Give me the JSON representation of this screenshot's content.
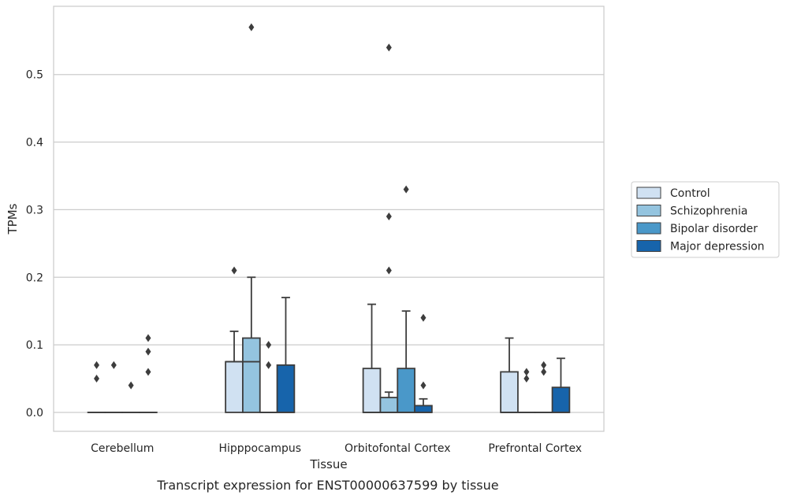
{
  "chart_data": {
    "type": "boxplot",
    "xlabel": "Tissue",
    "ylabel": "TPMs",
    "caption": "Transcript expression for ENST00000637599 by tissue",
    "ylim": [
      -0.028,
      0.601
    ],
    "yticks": [
      0.0,
      0.1,
      0.2,
      0.3,
      0.4,
      0.5
    ],
    "ytick_labels": [
      "0.0",
      "0.1",
      "0.2",
      "0.3",
      "0.4",
      "0.5"
    ],
    "grid": "horizontal",
    "legend_position": "right",
    "categories": [
      "Cerebellum",
      "Hipppocampus",
      "Orbitofontal Cortex",
      "Prefrontal Cortex"
    ],
    "series": [
      {
        "name": "Control",
        "color": "#d0e1f2",
        "boxes": [
          {
            "q1": 0.0,
            "median": 0.0,
            "q3": 0.0,
            "whislo": 0.0,
            "whishi": 0.0,
            "fliers": [
              0.05,
              0.07
            ]
          },
          {
            "q1": 0.0,
            "median": 0.075,
            "q3": 0.075,
            "whislo": 0.0,
            "whishi": 0.12,
            "fliers": [
              0.21
            ]
          },
          {
            "q1": 0.0,
            "median": 0.0,
            "q3": 0.065,
            "whislo": 0.0,
            "whishi": 0.16,
            "fliers": []
          },
          {
            "q1": 0.0,
            "median": 0.0,
            "q3": 0.06,
            "whislo": 0.0,
            "whishi": 0.11,
            "fliers": []
          }
        ]
      },
      {
        "name": "Schizophrenia",
        "color": "#94c4df",
        "boxes": [
          {
            "q1": 0.0,
            "median": 0.0,
            "q3": 0.0,
            "whislo": 0.0,
            "whishi": 0.0,
            "fliers": [
              0.07
            ]
          },
          {
            "q1": 0.0,
            "median": 0.075,
            "q3": 0.11,
            "whislo": 0.0,
            "whishi": 0.2,
            "fliers": [
              0.57
            ]
          },
          {
            "q1": 0.0,
            "median": 0.0,
            "q3": 0.022,
            "whislo": 0.0,
            "whishi": 0.03,
            "fliers": [
              0.21,
              0.29,
              0.54
            ]
          },
          {
            "q1": 0.0,
            "median": 0.0,
            "q3": 0.0,
            "whislo": 0.0,
            "whishi": 0.0,
            "fliers": [
              0.05,
              0.06
            ]
          }
        ]
      },
      {
        "name": "Bipolar disorder",
        "color": "#4a98c9",
        "boxes": [
          {
            "q1": 0.0,
            "median": 0.0,
            "q3": 0.0,
            "whislo": 0.0,
            "whishi": 0.0,
            "fliers": [
              0.04
            ]
          },
          {
            "q1": 0.0,
            "median": 0.0,
            "q3": 0.0,
            "whislo": 0.0,
            "whishi": 0.0,
            "fliers": [
              0.07,
              0.1
            ]
          },
          {
            "q1": 0.0,
            "median": 0.0,
            "q3": 0.065,
            "whislo": 0.0,
            "whishi": 0.15,
            "fliers": [
              0.33
            ]
          },
          {
            "q1": 0.0,
            "median": 0.0,
            "q3": 0.0,
            "whislo": 0.0,
            "whishi": 0.0,
            "fliers": [
              0.06,
              0.07
            ]
          }
        ]
      },
      {
        "name": "Major depression",
        "color": "#1764ab",
        "boxes": [
          {
            "q1": 0.0,
            "median": 0.0,
            "q3": 0.0,
            "whislo": 0.0,
            "whishi": 0.0,
            "fliers": [
              0.06,
              0.09,
              0.11
            ]
          },
          {
            "q1": 0.0,
            "median": 0.0,
            "q3": 0.07,
            "whislo": 0.0,
            "whishi": 0.17,
            "fliers": []
          },
          {
            "q1": 0.0,
            "median": 0.0,
            "q3": 0.01,
            "whislo": 0.0,
            "whishi": 0.02,
            "fliers": [
              0.04,
              0.14
            ]
          },
          {
            "q1": 0.0,
            "median": 0.0,
            "q3": 0.037,
            "whislo": 0.0,
            "whishi": 0.08,
            "fliers": []
          }
        ]
      }
    ]
  }
}
